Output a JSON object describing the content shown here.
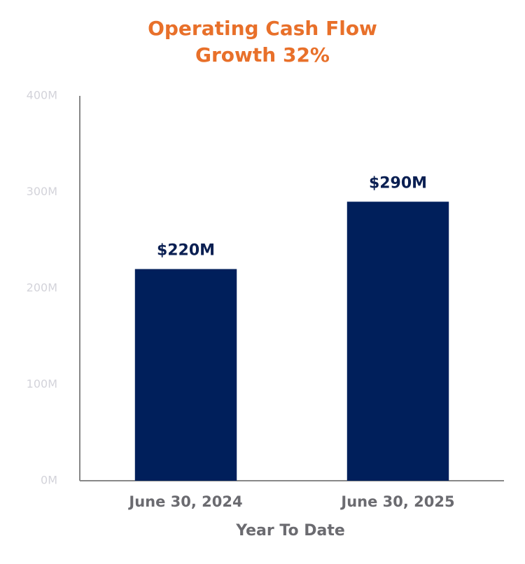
{
  "chart_data": {
    "type": "bar",
    "title": [
      "Operating Cash Flow",
      "Growth 32%"
    ],
    "x_label": "Year To Date",
    "categories": [
      "June 30, 2024",
      "June 30, 2025"
    ],
    "values": [
      220,
      290
    ],
    "value_labels": [
      "$220M",
      "$290M"
    ],
    "color": "#001f5b",
    "ylim": [
      0,
      400
    ],
    "yticks": [
      {
        "value": 0,
        "label": "0M"
      },
      {
        "value": 100,
        "label": "100M"
      },
      {
        "value": 200,
        "label": "200M"
      },
      {
        "value": 300,
        "label": "300M"
      },
      {
        "value": 400,
        "label": "400M"
      }
    ],
    "grid": false
  }
}
